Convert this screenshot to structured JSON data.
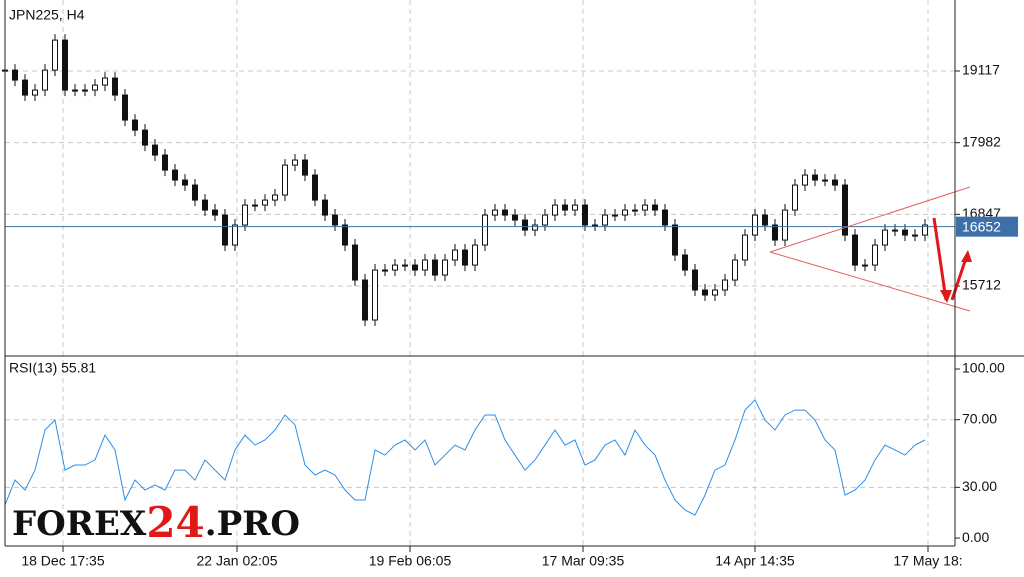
{
  "chart_data": [
    {
      "type": "candlestick",
      "title": "JPN225, H4",
      "values": [
        19131,
        18973,
        18736,
        18815,
        19131,
        19606,
        18815,
        18815,
        18815,
        18894,
        19005,
        18736,
        18340,
        18181,
        17944,
        17786,
        17548,
        17390,
        17311,
        17073,
        16915,
        16836,
        16361,
        16678,
        16994,
        16994,
        17073,
        17153,
        17627,
        17707,
        17469,
        17073,
        16836,
        16678,
        16361,
        15807,
        15174,
        15965,
        15965,
        16044,
        16044,
        15965,
        16124,
        15886,
        16124,
        16282,
        16044,
        16361,
        16836,
        16915,
        16836,
        16757,
        16598,
        16678,
        16836,
        16994,
        16915,
        16994,
        16678,
        16678,
        16836,
        16836,
        16915,
        16915,
        16994,
        16915,
        16678,
        16203,
        15965,
        15649,
        15570,
        15649,
        15807,
        16124,
        16519,
        16836,
        16678,
        16440,
        16915,
        17311,
        17469,
        17390,
        17390,
        17311,
        16519,
        16044,
        16044,
        16361,
        16598,
        16598,
        16519,
        16519,
        16678
      ],
      "xlim": [
        0,
        95
      ],
      "xticks": [
        {
          "value": 5.8,
          "label": "18 Dec 17:35"
        },
        {
          "value": 23.2,
          "label": "22 Jan 02:05"
        },
        {
          "value": 40.5,
          "label": "19 Feb 06:05"
        },
        {
          "value": 57.8,
          "label": "17 Mar 09:35"
        },
        {
          "value": 75,
          "label": "14 Apr 14:35"
        },
        {
          "value": 92.3,
          "label": "17 May 18:"
        }
      ],
      "ylim": [
        14620,
        20162
      ],
      "yticks": [
        19117,
        17982,
        16847,
        15712
      ],
      "last_price": 16652,
      "last_price_color": "#3d6fa8",
      "grid": true
    },
    {
      "type": "line",
      "title": "RSI(13) 55.81",
      "color": "#2f8ee6",
      "values": [
        19.5,
        34.3,
        28.4,
        40.2,
        63.9,
        69.8,
        40.2,
        43.2,
        43.2,
        46.2,
        60.9,
        52.1,
        22.5,
        34.3,
        28.4,
        31.4,
        28.4,
        40.2,
        40.2,
        34.3,
        46.2,
        40.2,
        34.3,
        52.1,
        60.9,
        55.0,
        58.0,
        63.9,
        72.8,
        66.9,
        43.2,
        37.3,
        40.2,
        37.3,
        28.4,
        22.5,
        22.5,
        52.1,
        49.1,
        55.0,
        58.0,
        52.1,
        58.0,
        43.2,
        49.1,
        55.0,
        52.1,
        63.9,
        72.8,
        72.8,
        58.0,
        49.1,
        40.2,
        46.2,
        55.0,
        63.9,
        55.0,
        58.0,
        43.2,
        46.2,
        55.0,
        58.0,
        49.1,
        63.9,
        55.0,
        49.1,
        34.3,
        22.5,
        16.6,
        13.6,
        25.4,
        40.2,
        43.2,
        58.0,
        75.7,
        81.7,
        69.8,
        63.9,
        72.8,
        75.7,
        75.7,
        69.8,
        58.0,
        52.1,
        25.4,
        28.4,
        34.3,
        46.2,
        55.0,
        52.1,
        49.1,
        55.0,
        58.0
      ],
      "ylim": [
        -4.7,
        106.5
      ],
      "yticks": [
        {
          "value": 100,
          "label": "100.00"
        },
        {
          "value": 70,
          "label": "70.00"
        },
        {
          "value": 30,
          "label": "30.00"
        },
        {
          "value": 0,
          "label": "0.00"
        }
      ],
      "grid_ticks": [
        70,
        30
      ]
    }
  ],
  "watermark": [
    "FOREX",
    "24",
    ".PRO"
  ]
}
